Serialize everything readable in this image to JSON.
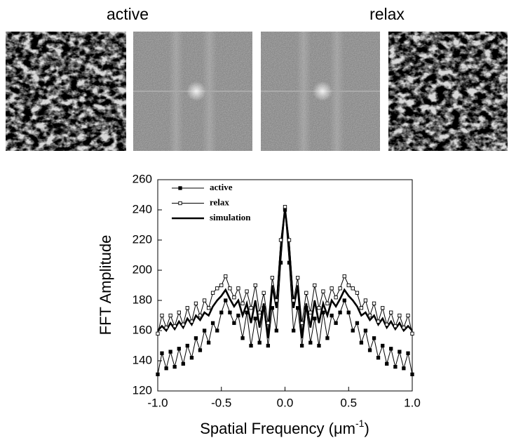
{
  "panel_labels": [
    "active",
    "relax"
  ],
  "chart_data": {
    "type": "line",
    "x_label_parts": [
      "Spatial Frequency (μm",
      "-1",
      ")"
    ],
    "y_label": "FFT Amplitude",
    "xlim": [
      -1,
      1
    ],
    "ylim": [
      120,
      260
    ],
    "xticks": [
      {
        "value": -1,
        "label": "-1.0"
      },
      {
        "value": -0.5,
        "label": "-0.5"
      },
      {
        "value": 0,
        "label": "0.0"
      },
      {
        "value": 0.5,
        "label": "0.5"
      },
      {
        "value": 1,
        "label": "1.0"
      }
    ],
    "yticks": [
      120,
      140,
      160,
      180,
      200,
      220,
      240,
      260
    ],
    "legend_position": "upper-left",
    "x": [
      -1,
      -0.967,
      -0.933,
      -0.9,
      -0.867,
      -0.833,
      -0.8,
      -0.767,
      -0.733,
      -0.7,
      -0.667,
      -0.633,
      -0.6,
      -0.567,
      -0.533,
      -0.5,
      -0.467,
      -0.433,
      -0.4,
      -0.367,
      -0.333,
      -0.3,
      -0.267,
      -0.233,
      -0.2,
      -0.167,
      -0.133,
      -0.1,
      -0.067,
      -0.033,
      0,
      0.033,
      0.067,
      0.1,
      0.133,
      0.167,
      0.2,
      0.233,
      0.267,
      0.3,
      0.333,
      0.367,
      0.4,
      0.433,
      0.467,
      0.5,
      0.533,
      0.567,
      0.6,
      0.633,
      0.667,
      0.7,
      0.733,
      0.767,
      0.8,
      0.833,
      0.867,
      0.9,
      0.933,
      0.967,
      1
    ],
    "series": [
      {
        "name": "active",
        "color": "#000000",
        "marker": "filled-square",
        "line_width": 1,
        "values": [
          131,
          145,
          135,
          146,
          136,
          148,
          138,
          150,
          142,
          155,
          147,
          160,
          152,
          165,
          160,
          172,
          180,
          172,
          165,
          170,
          155,
          172,
          150,
          168,
          152,
          175,
          150,
          175,
          160,
          205,
          240,
          205,
          160,
          175,
          150,
          175,
          152,
          168,
          150,
          172,
          155,
          170,
          165,
          172,
          180,
          172,
          160,
          165,
          152,
          160,
          147,
          155,
          142,
          150,
          138,
          148,
          136,
          146,
          135,
          145,
          131
        ]
      },
      {
        "name": "relax",
        "color": "#000000",
        "marker": "open-square",
        "line_width": 1,
        "values": [
          158,
          170,
          162,
          170,
          163,
          172,
          164,
          175,
          166,
          178,
          170,
          180,
          175,
          185,
          188,
          190,
          196,
          188,
          182,
          188,
          178,
          186,
          175,
          190,
          172,
          185,
          165,
          195,
          180,
          220,
          242,
          220,
          180,
          195,
          165,
          185,
          172,
          190,
          175,
          186,
          178,
          188,
          182,
          188,
          196,
          190,
          188,
          185,
          175,
          180,
          170,
          178,
          166,
          175,
          164,
          172,
          163,
          170,
          162,
          170,
          158
        ]
      },
      {
        "name": "simulation",
        "color": "#000000",
        "marker": "none",
        "line_width": 2.6,
        "values": [
          160,
          163,
          160,
          165,
          161,
          166,
          162,
          168,
          164,
          170,
          167,
          172,
          170,
          176,
          180,
          183,
          187,
          181,
          176,
          180,
          170,
          178,
          165,
          180,
          162,
          178,
          155,
          190,
          175,
          215,
          241,
          215,
          175,
          190,
          155,
          178,
          162,
          180,
          165,
          178,
          170,
          180,
          176,
          181,
          187,
          183,
          180,
          176,
          170,
          172,
          167,
          170,
          164,
          168,
          162,
          166,
          161,
          165,
          160,
          163,
          160
        ]
      }
    ]
  }
}
